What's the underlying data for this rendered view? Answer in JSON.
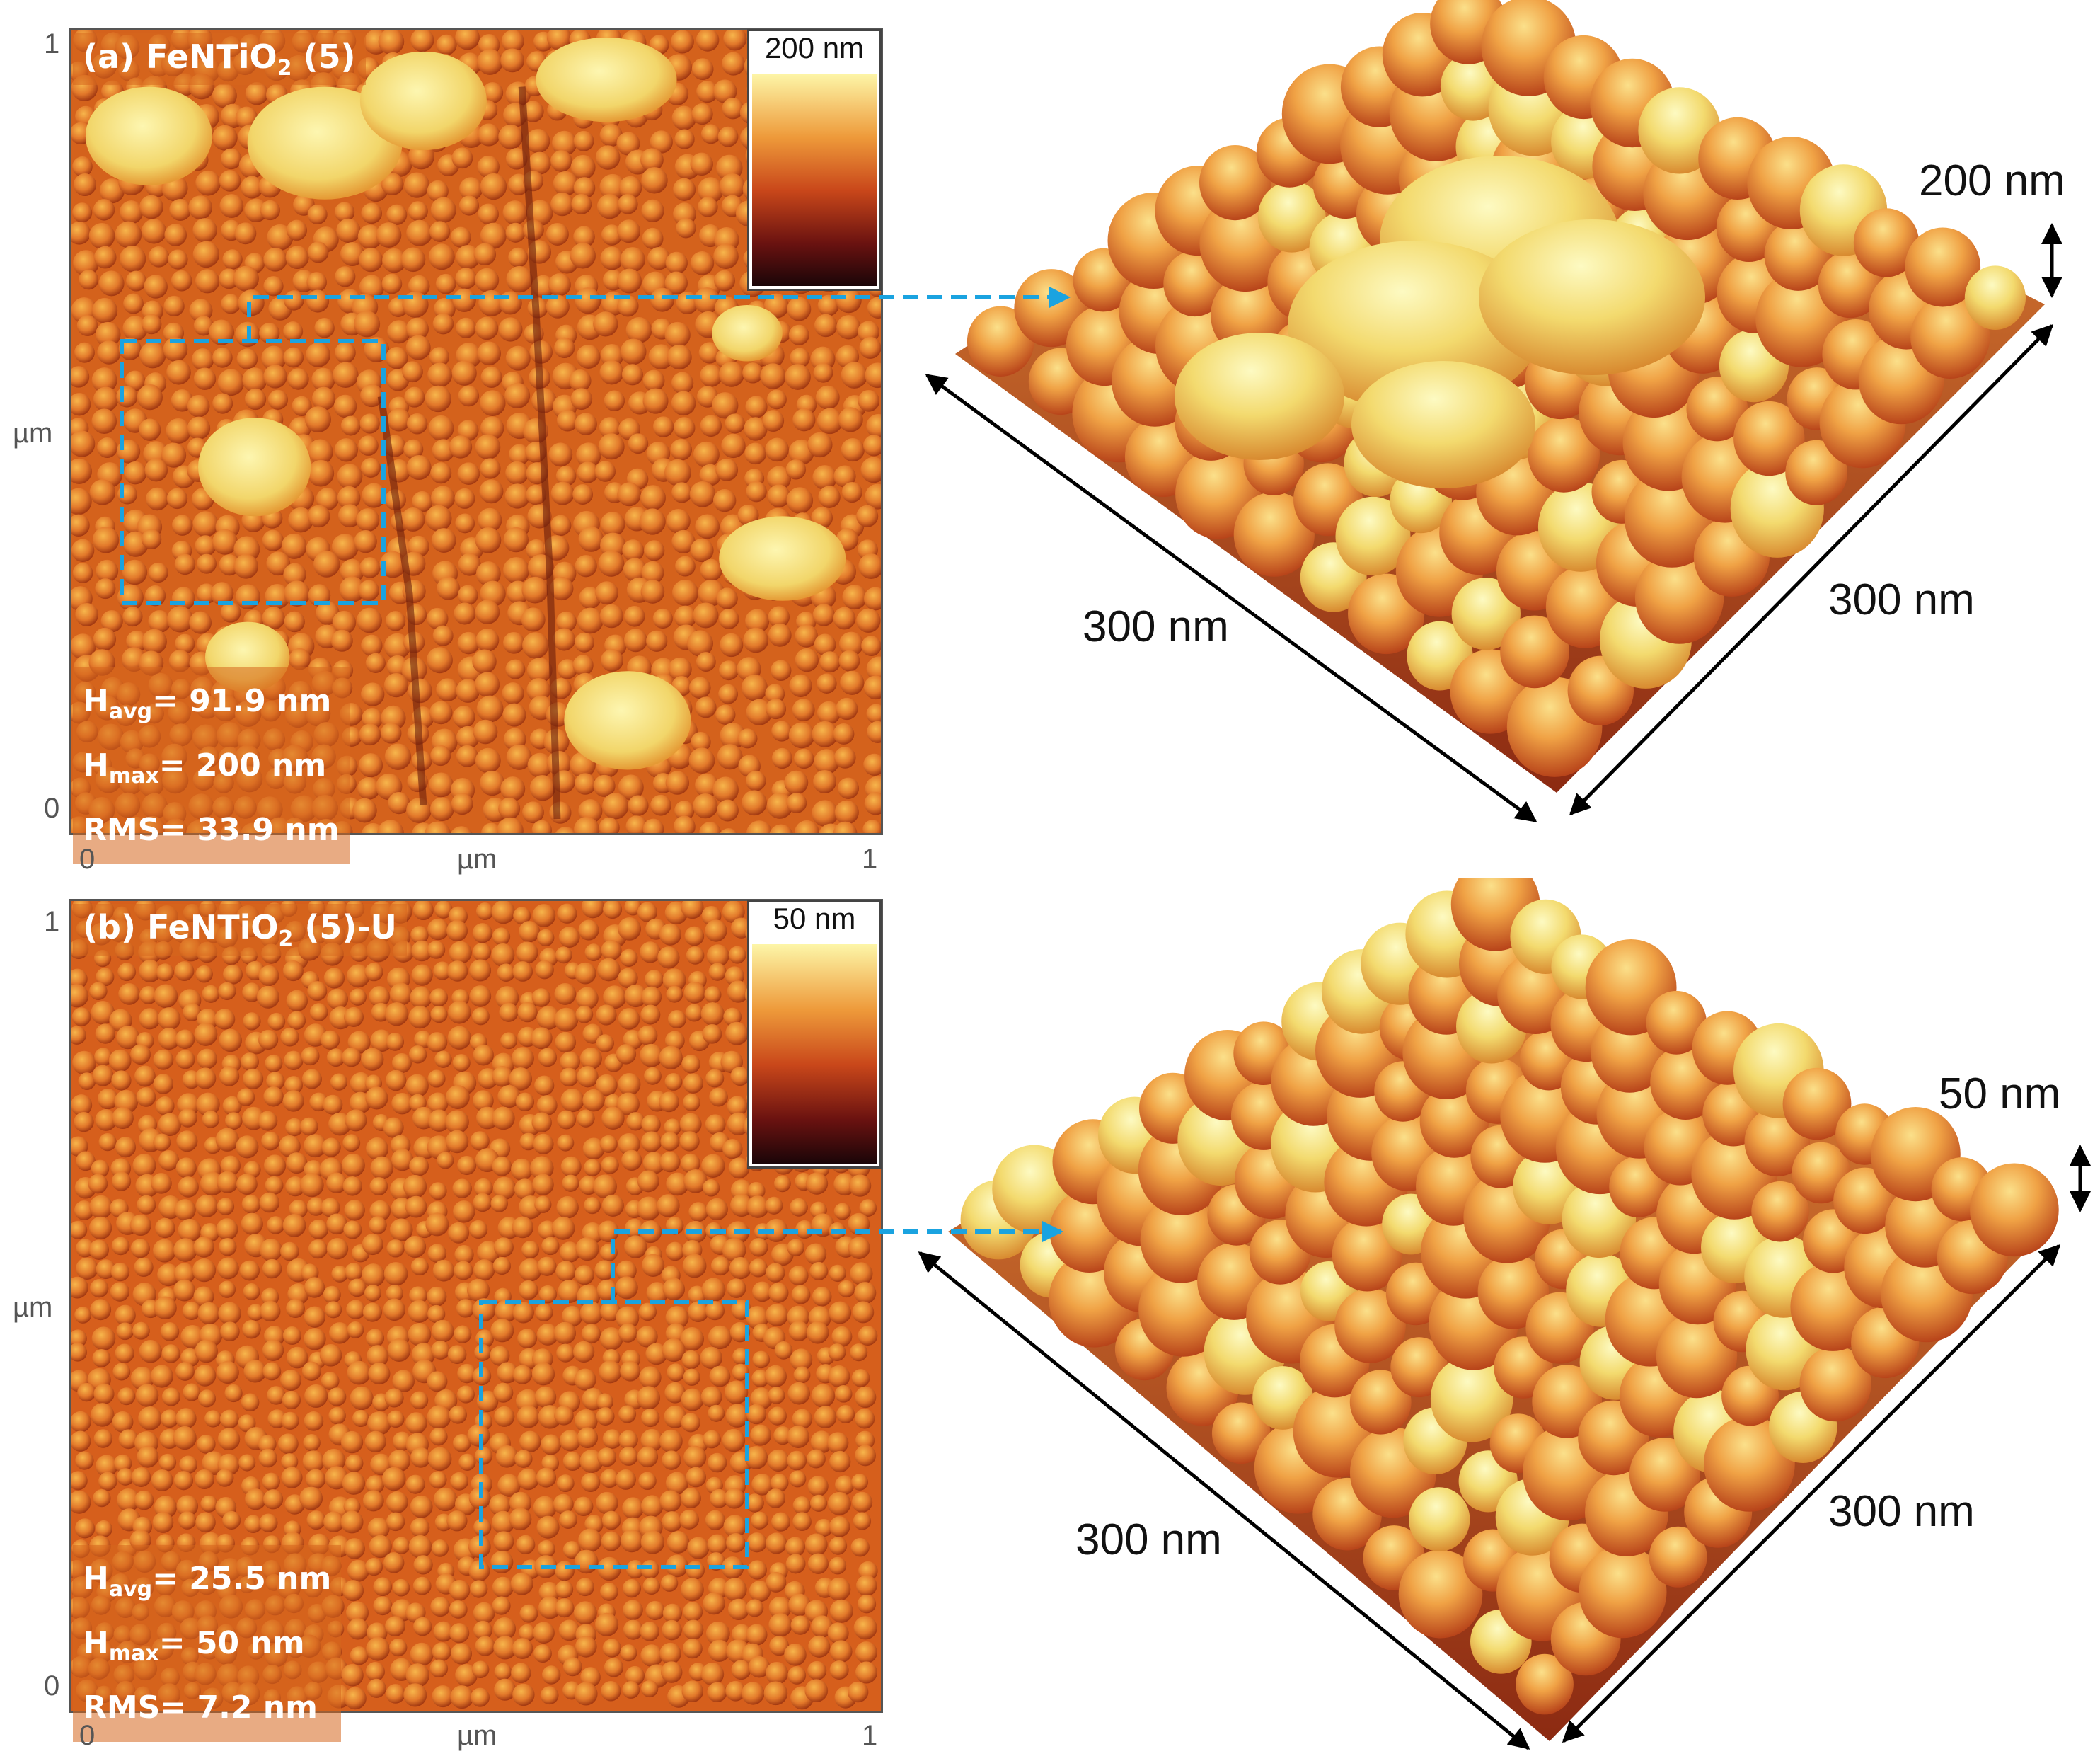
{
  "panels": [
    {
      "title": "(a) FeNTiO",
      "title_sub": "2",
      "title_suffix": " (5)",
      "colorbar_label": "200 nm",
      "stats": {
        "havg_prefix": "H",
        "havg_sub": "avg",
        "havg_value": "= 91.9 nm",
        "hmax_prefix": "H",
        "hmax_sub": "max",
        "hmax_value": "= 200 nm",
        "rms": "RMS= 33.9 nm"
      },
      "axis": {
        "y_top": "1",
        "y_mid": "µm",
        "y_bottom": "0",
        "x_left": "0",
        "x_mid": "µm",
        "x_right": "1"
      },
      "surface3d": {
        "height_label": "200 nm",
        "side_left": "300 nm",
        "side_right": "300 nm"
      }
    },
    {
      "title": "(b) FeNTiO",
      "title_sub": "2",
      "title_suffix": " (5)-U",
      "colorbar_label": "50 nm",
      "stats": {
        "havg_prefix": "H",
        "havg_sub": "avg",
        "havg_value": "= 25.5 nm",
        "hmax_prefix": "H",
        "hmax_sub": "max",
        "hmax_value": "= 50 nm",
        "rms": "RMS= 7.2 nm"
      },
      "axis": {
        "y_top": "1",
        "y_mid": "µm",
        "y_bottom": "0",
        "x_left": "0",
        "x_mid": "µm",
        "x_right": "1"
      },
      "surface3d": {
        "height_label": "50 nm",
        "side_left": "300 nm",
        "side_right": "300 nm"
      }
    }
  ],
  "colors": {
    "highlight": "#1aa3e0",
    "afm_dark": "#2a0a08",
    "afm_mid": "#e0701e",
    "afm_light": "#fbf59a"
  }
}
